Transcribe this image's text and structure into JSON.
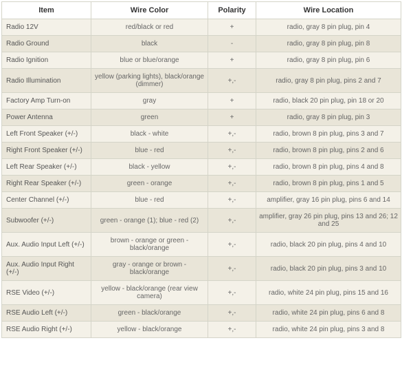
{
  "table": {
    "headers": {
      "item": "Item",
      "wire_color": "Wire Color",
      "polarity": "Polarity",
      "wire_location": "Wire Location"
    },
    "rows": [
      {
        "item": "Radio 12V",
        "wire_color": "red/black or red",
        "polarity": "+",
        "wire_location": "radio, gray 8 pin plug, pin 4"
      },
      {
        "item": "Radio Ground",
        "wire_color": "black",
        "polarity": "-",
        "wire_location": "radio, gray 8 pin plug, pin 8"
      },
      {
        "item": "Radio Ignition",
        "wire_color": "blue or blue/orange",
        "polarity": "+",
        "wire_location": "radio, gray 8 pin plug, pin 6"
      },
      {
        "item": "Radio Illumination",
        "wire_color": "yellow (parking lights), black/orange (dimmer)",
        "polarity": "+,-",
        "wire_location": "radio, gray 8 pin plug, pins 2 and 7"
      },
      {
        "item": "Factory Amp Turn-on",
        "wire_color": "gray",
        "polarity": "+",
        "wire_location": "radio, black 20 pin plug, pin 18 or 20"
      },
      {
        "item": "Power Antenna",
        "wire_color": "green",
        "polarity": "+",
        "wire_location": "radio, gray 8 pin plug, pin 3"
      },
      {
        "item": "Left Front Speaker (+/-)",
        "wire_color": "black - white",
        "polarity": "+,-",
        "wire_location": "radio, brown 8 pin plug, pins 3 and 7"
      },
      {
        "item": "Right Front Speaker (+/-)",
        "wire_color": "blue - red",
        "polarity": "+,-",
        "wire_location": "radio, brown 8 pin plug, pins 2 and 6"
      },
      {
        "item": "Left Rear Speaker (+/-)",
        "wire_color": "black - yellow",
        "polarity": "+,-",
        "wire_location": "radio, brown 8 pin plug, pins 4 and 8"
      },
      {
        "item": "Right Rear Speaker (+/-)",
        "wire_color": "green - orange",
        "polarity": "+,-",
        "wire_location": "radio, brown 8 pin plug, pins 1 and 5"
      },
      {
        "item": "Center Channel (+/-)",
        "wire_color": "blue - red",
        "polarity": "+,-",
        "wire_location": "amplifier, gray 16 pin plug, pins 6 and 14"
      },
      {
        "item": "Subwoofer (+/-)",
        "wire_color": "green - orange (1); blue - red (2)",
        "polarity": "+,-",
        "wire_location": "amplifier, gray 26 pin plug, pins 13 and 26; 12 and 25"
      },
      {
        "item": "Aux. Audio Input Left (+/-)",
        "wire_color": "brown - orange or green - black/orange",
        "polarity": "+,-",
        "wire_location": "radio, black 20 pin plug, pins 4 and 10"
      },
      {
        "item": "Aux. Audio Input Right (+/-)",
        "wire_color": "gray - orange or brown - black/orange",
        "polarity": "+,-",
        "wire_location": "radio, black 20 pin plug, pins 3 and 10"
      },
      {
        "item": "RSE Video (+/-)",
        "wire_color": "yellow - black/orange (rear view camera)",
        "polarity": "+,-",
        "wire_location": "radio, white 24 pin plug, pins 15 and 16"
      },
      {
        "item": "RSE Audio Left (+/-)",
        "wire_color": "green - black/orange",
        "polarity": "+,-",
        "wire_location": "radio, white 24 pin plug, pins 6 and 8"
      },
      {
        "item": "RSE Audio Right (+/-)",
        "wire_color": "yellow - black/orange",
        "polarity": "+,-",
        "wire_location": "radio, white 24 pin plug, pins 3 and 8"
      }
    ],
    "styling": {
      "row_odd_bg": "#f4f1e8",
      "row_even_bg": "#e9e5d8",
      "header_bg": "#ffffff",
      "border_color": "#d4d4c8",
      "header_font_size": 11,
      "cell_font_size": 10,
      "text_color": "#666666",
      "header_text_color": "#333333",
      "column_widths": {
        "item": 130,
        "wire_color": 170,
        "polarity": 70,
        "wire_location": 211
      }
    }
  }
}
